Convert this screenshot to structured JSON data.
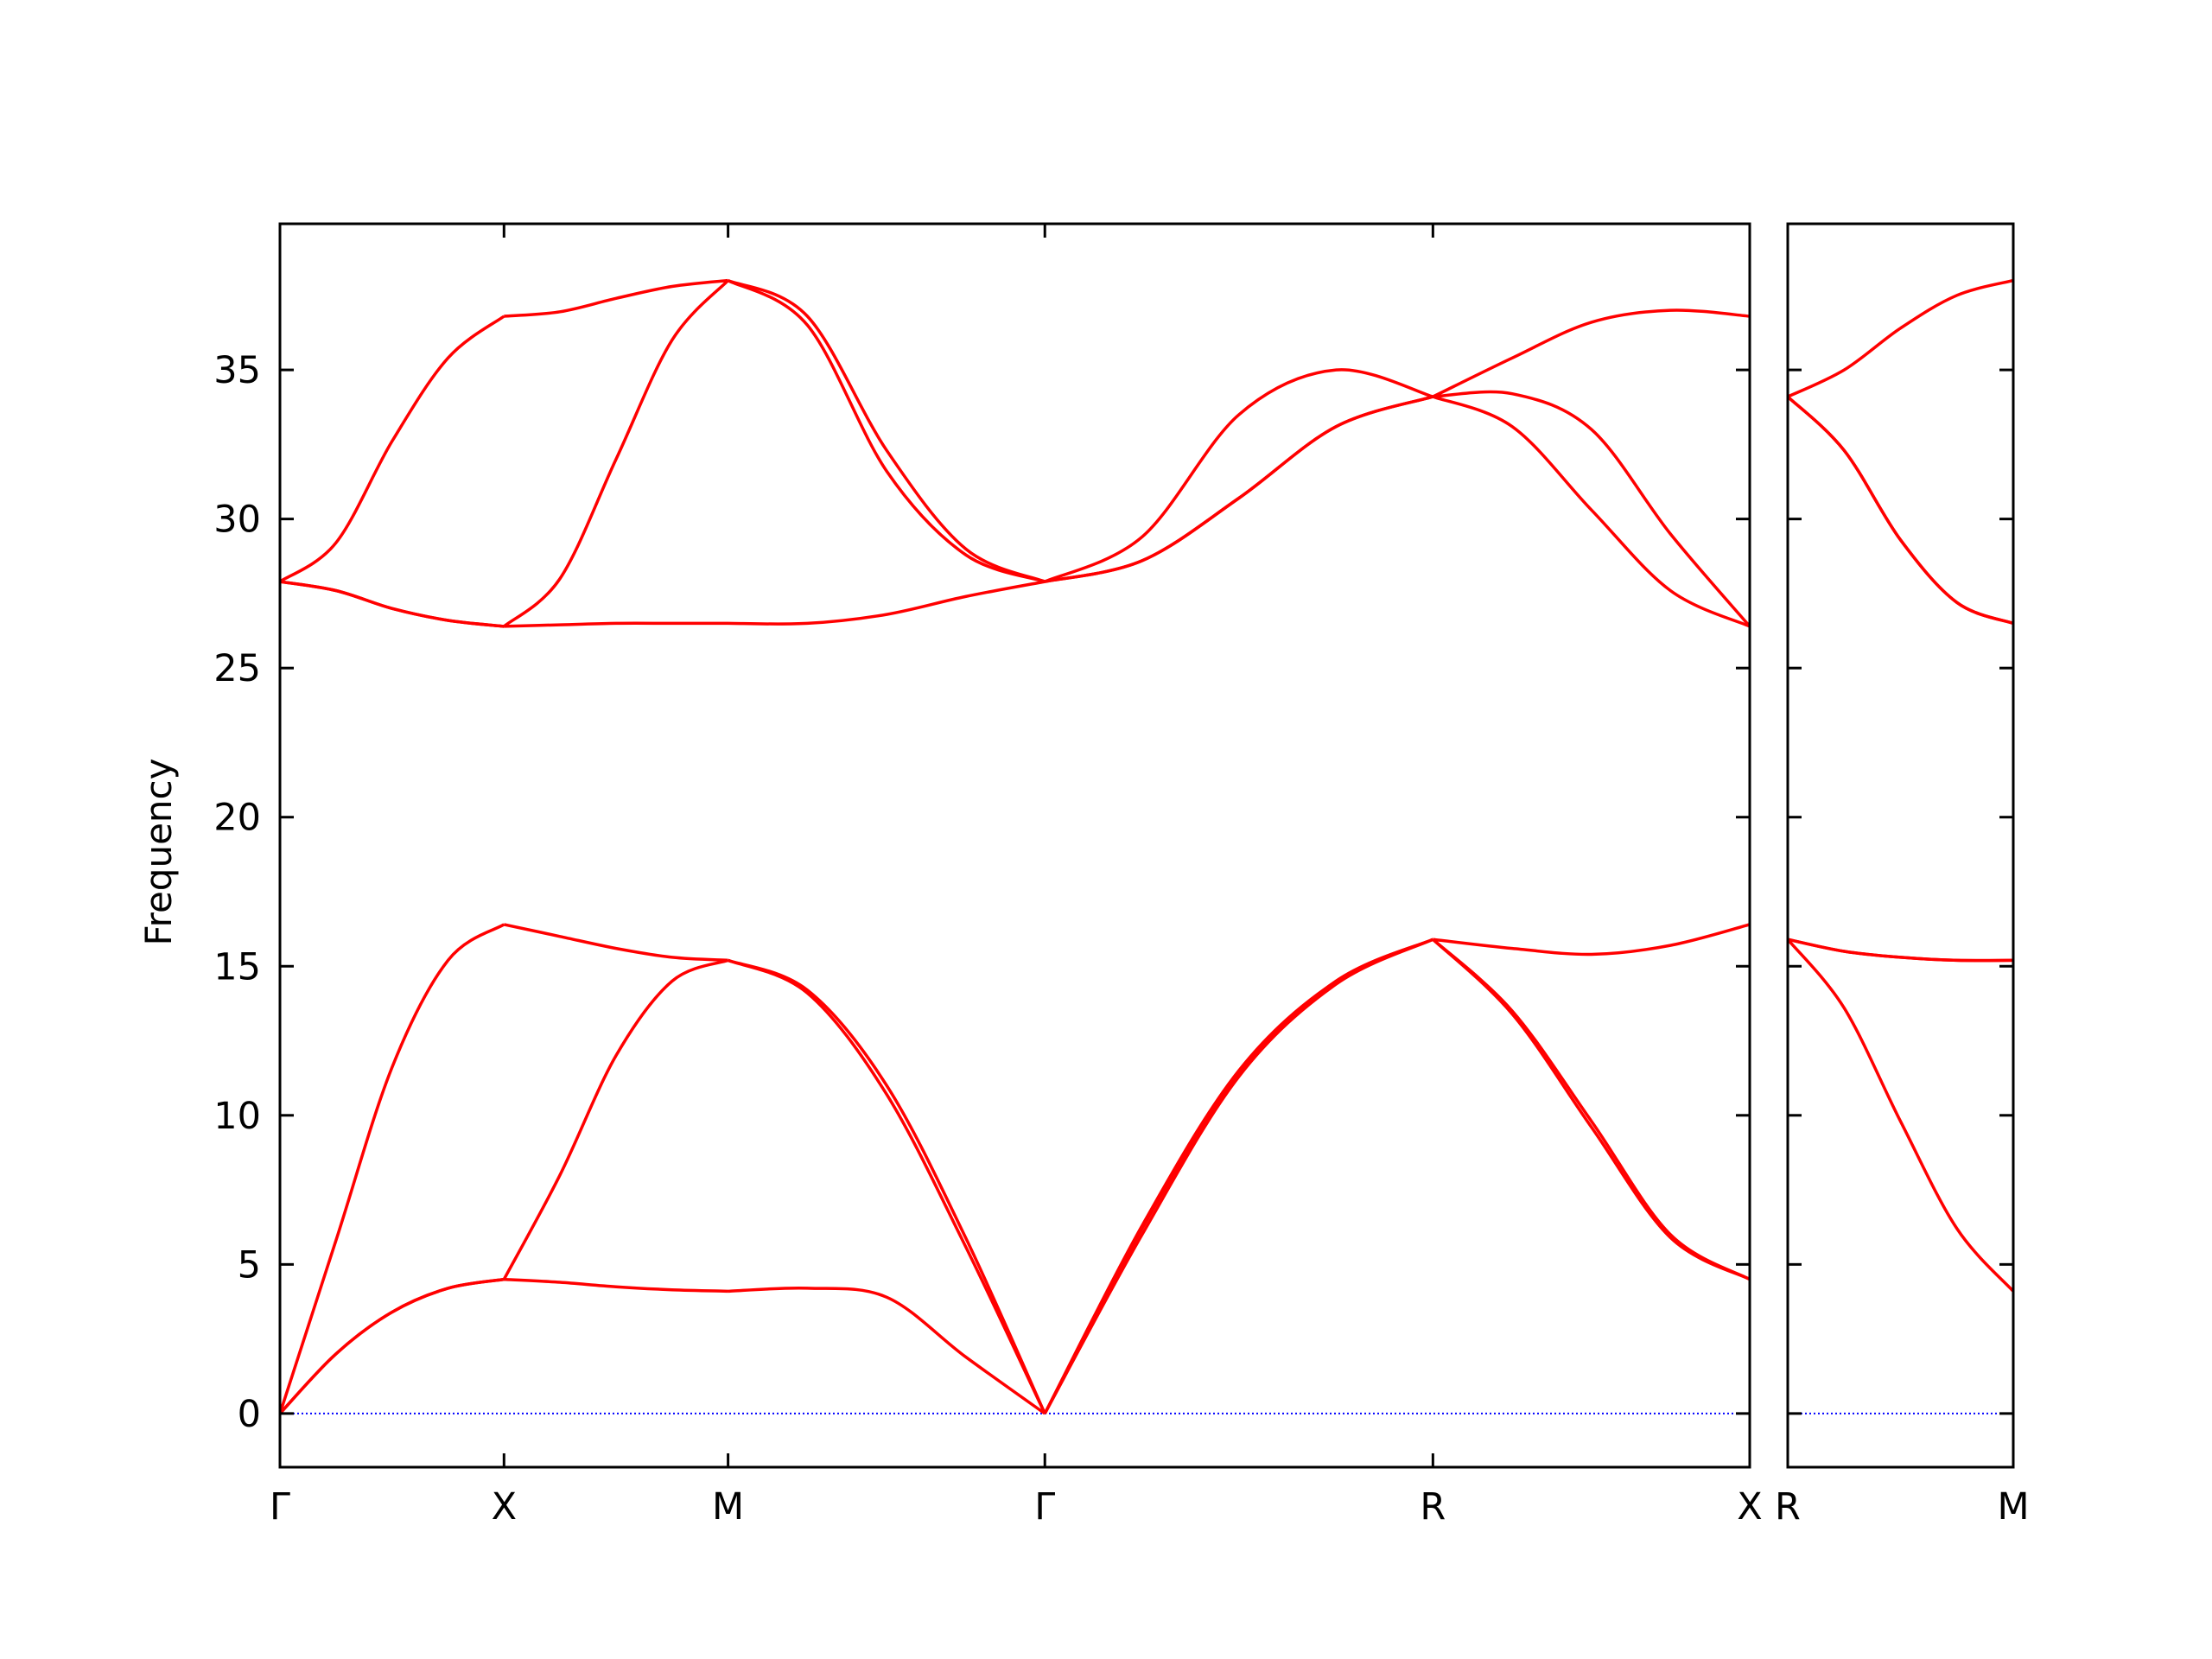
{
  "chart_data": {
    "type": "line",
    "ylabel": "Frequency",
    "ylim": [
      -1.8,
      39.9
    ],
    "yticks": [
      0,
      5,
      10,
      15,
      20,
      25,
      30,
      35
    ],
    "line_color": "#ff0000",
    "zero_line_color": "#0000ff",
    "panels": [
      {
        "xlim": [
          0,
          3.28
        ],
        "xticks": [
          {
            "label": "Γ",
            "x": 0
          },
          {
            "label": "X",
            "x": 0.5
          },
          {
            "label": "M",
            "x": 1.0
          },
          {
            "label": "Γ",
            "x": 1.707
          },
          {
            "label": "R",
            "x": 2.573
          },
          {
            "label": "X",
            "x": 3.28
          }
        ],
        "x": [
          0,
          0.125,
          0.25,
          0.375,
          0.5,
          0.625,
          0.75,
          0.875,
          1.0,
          1.177,
          1.354,
          1.53,
          1.707,
          1.924,
          2.14,
          2.357,
          2.573,
          2.75,
          2.927,
          3.103,
          3.28
        ],
        "bands": [
          [
            0,
            2.0,
            3.4,
            4.2,
            4.5,
            4.4,
            4.25,
            4.15,
            4.1,
            4.2,
            3.9,
            1.9,
            0,
            6.0,
            11.3,
            14.4,
            15.9,
            13.4,
            9.6,
            5.9,
            4.5
          ],
          [
            0,
            2.0,
            3.4,
            4.2,
            4.5,
            8.0,
            12.0,
            14.5,
            15.2,
            14.2,
            11.0,
            5.9,
            0,
            6.3,
            11.5,
            14.5,
            15.9,
            13.5,
            9.8,
            6.0,
            4.5
          ],
          [
            0,
            5.8,
            11.6,
            15.2,
            16.4,
            16.0,
            15.6,
            15.3,
            15.2,
            14.1,
            10.7,
            5.6,
            0,
            6.2,
            11.4,
            14.5,
            15.9,
            15.6,
            15.4,
            15.7,
            16.4
          ],
          [
            27.9,
            27.6,
            27.0,
            26.6,
            26.4,
            26.45,
            26.5,
            26.5,
            26.5,
            26.5,
            26.8,
            27.4,
            27.9,
            28.6,
            30.7,
            33.1,
            34.1,
            33.1,
            30.3,
            27.6,
            26.4
          ],
          [
            27.9,
            27.6,
            27.0,
            26.6,
            26.4,
            28.0,
            32.0,
            36.0,
            38.0,
            36.5,
            31.6,
            28.8,
            27.9,
            28.6,
            30.7,
            33.1,
            34.1,
            34.2,
            33.0,
            29.5,
            26.4
          ],
          [
            27.9,
            29.2,
            32.6,
            35.4,
            36.8,
            36.95,
            37.4,
            37.8,
            38.0,
            36.8,
            32.3,
            29.0,
            27.9,
            29.4,
            33.5,
            35.0,
            34.1,
            35.4,
            36.6,
            37.0,
            36.8
          ]
        ]
      },
      {
        "xlim": [
          0,
          0.5
        ],
        "xticks": [
          {
            "label": "R",
            "x": 0
          },
          {
            "label": "M",
            "x": 0.5
          }
        ],
        "x": [
          0,
          0.125,
          0.25,
          0.375,
          0.5
        ],
        "bands": [
          [
            15.9,
            13.6,
            9.8,
            6.2,
            4.1
          ],
          [
            15.9,
            15.5,
            15.3,
            15.2,
            15.2
          ],
          [
            15.9,
            15.5,
            15.3,
            15.2,
            15.2
          ],
          [
            34.1,
            32.3,
            29.3,
            27.2,
            26.5
          ],
          [
            34.1,
            32.3,
            29.3,
            27.2,
            26.5
          ],
          [
            34.1,
            35.0,
            36.4,
            37.5,
            38.0
          ]
        ]
      }
    ]
  }
}
